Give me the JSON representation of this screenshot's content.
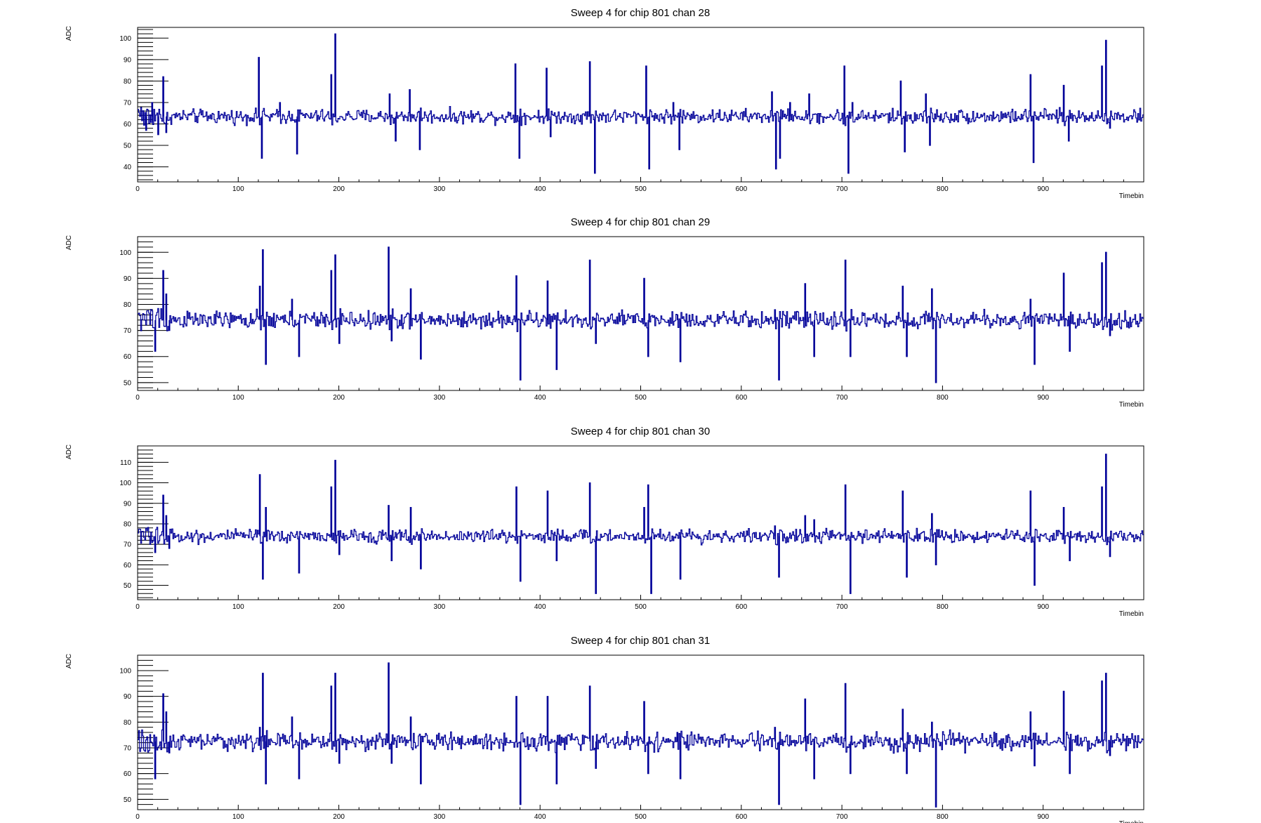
{
  "chart_data": [
    {
      "type": "line",
      "title": "Sweep 4 for chip 801 chan 28",
      "xlabel": "Timebin",
      "ylabel": "ADC",
      "xlim": [
        0,
        1000
      ],
      "ylim": [
        33,
        105
      ],
      "xticks": [
        0,
        100,
        200,
        300,
        400,
        500,
        600,
        700,
        800,
        900
      ],
      "yticks": [
        40,
        50,
        60,
        70,
        80,
        90,
        100
      ],
      "baseline": 63.5,
      "color": "#000099",
      "spikes": [
        {
          "x": 8,
          "y": 57
        },
        {
          "x": 14,
          "y": 70
        },
        {
          "x": 20,
          "y": 55
        },
        {
          "x": 25,
          "y": 82
        },
        {
          "x": 28,
          "y": 56
        },
        {
          "x": 120,
          "y": 91
        },
        {
          "x": 123,
          "y": 44
        },
        {
          "x": 141,
          "y": 70
        },
        {
          "x": 158,
          "y": 46
        },
        {
          "x": 192,
          "y": 83
        },
        {
          "x": 196,
          "y": 102
        },
        {
          "x": 250,
          "y": 74
        },
        {
          "x": 256,
          "y": 52
        },
        {
          "x": 270,
          "y": 76
        },
        {
          "x": 280,
          "y": 48
        },
        {
          "x": 375,
          "y": 88
        },
        {
          "x": 379,
          "y": 44
        },
        {
          "x": 406,
          "y": 86
        },
        {
          "x": 410,
          "y": 54
        },
        {
          "x": 449,
          "y": 89
        },
        {
          "x": 454,
          "y": 37
        },
        {
          "x": 505,
          "y": 87
        },
        {
          "x": 508,
          "y": 39
        },
        {
          "x": 532,
          "y": 70
        },
        {
          "x": 538,
          "y": 48
        },
        {
          "x": 630,
          "y": 75
        },
        {
          "x": 634,
          "y": 39
        },
        {
          "x": 638,
          "y": 44
        },
        {
          "x": 648,
          "y": 70
        },
        {
          "x": 667,
          "y": 74
        },
        {
          "x": 702,
          "y": 87
        },
        {
          "x": 706,
          "y": 37
        },
        {
          "x": 710,
          "y": 70
        },
        {
          "x": 758,
          "y": 80
        },
        {
          "x": 762,
          "y": 47
        },
        {
          "x": 783,
          "y": 74
        },
        {
          "x": 787,
          "y": 50
        },
        {
          "x": 887,
          "y": 83
        },
        {
          "x": 890,
          "y": 42
        },
        {
          "x": 920,
          "y": 78
        },
        {
          "x": 925,
          "y": 52
        },
        {
          "x": 958,
          "y": 87
        },
        {
          "x": 962,
          "y": 99
        },
        {
          "x": 966,
          "y": 58
        }
      ]
    },
    {
      "type": "line",
      "title": "Sweep 4 for chip 801 chan 29",
      "xlabel": "Timebin",
      "ylabel": "ADC",
      "xlim": [
        0,
        1000
      ],
      "ylim": [
        47,
        106
      ],
      "xticks": [
        0,
        100,
        200,
        300,
        400,
        500,
        600,
        700,
        800,
        900
      ],
      "yticks": [
        50,
        60,
        70,
        80,
        90,
        100
      ],
      "baseline": 74,
      "color": "#000099",
      "spikes": [
        {
          "x": 17,
          "y": 62
        },
        {
          "x": 25,
          "y": 93
        },
        {
          "x": 28,
          "y": 84
        },
        {
          "x": 31,
          "y": 70
        },
        {
          "x": 121,
          "y": 87
        },
        {
          "x": 124,
          "y": 101
        },
        {
          "x": 127,
          "y": 57
        },
        {
          "x": 153,
          "y": 82
        },
        {
          "x": 160,
          "y": 60
        },
        {
          "x": 192,
          "y": 93
        },
        {
          "x": 196,
          "y": 99
        },
        {
          "x": 200,
          "y": 65
        },
        {
          "x": 249,
          "y": 102
        },
        {
          "x": 252,
          "y": 66
        },
        {
          "x": 271,
          "y": 86
        },
        {
          "x": 281,
          "y": 59
        },
        {
          "x": 376,
          "y": 91
        },
        {
          "x": 380,
          "y": 51
        },
        {
          "x": 407,
          "y": 89
        },
        {
          "x": 416,
          "y": 55
        },
        {
          "x": 449,
          "y": 97
        },
        {
          "x": 455,
          "y": 65
        },
        {
          "x": 503,
          "y": 90
        },
        {
          "x": 507,
          "y": 60
        },
        {
          "x": 536,
          "y": 76
        },
        {
          "x": 539,
          "y": 58
        },
        {
          "x": 633,
          "y": 78
        },
        {
          "x": 637,
          "y": 51
        },
        {
          "x": 663,
          "y": 88
        },
        {
          "x": 672,
          "y": 60
        },
        {
          "x": 703,
          "y": 97
        },
        {
          "x": 708,
          "y": 60
        },
        {
          "x": 760,
          "y": 87
        },
        {
          "x": 764,
          "y": 60
        },
        {
          "x": 789,
          "y": 86
        },
        {
          "x": 793,
          "y": 50
        },
        {
          "x": 887,
          "y": 82
        },
        {
          "x": 891,
          "y": 57
        },
        {
          "x": 920,
          "y": 92
        },
        {
          "x": 926,
          "y": 62
        },
        {
          "x": 958,
          "y": 96
        },
        {
          "x": 962,
          "y": 100
        },
        {
          "x": 966,
          "y": 68
        }
      ]
    },
    {
      "type": "line",
      "title": "Sweep 4 for chip 801 chan 30",
      "xlabel": "Timebin",
      "ylabel": "ADC",
      "xlim": [
        0,
        1000
      ],
      "ylim": [
        43,
        118
      ],
      "xticks": [
        0,
        100,
        200,
        300,
        400,
        500,
        600,
        700,
        800,
        900
      ],
      "yticks": [
        50,
        60,
        70,
        80,
        90,
        100,
        110
      ],
      "baseline": 74,
      "color": "#000099",
      "spikes": [
        {
          "x": 17,
          "y": 66
        },
        {
          "x": 25,
          "y": 94
        },
        {
          "x": 28,
          "y": 84
        },
        {
          "x": 31,
          "y": 68
        },
        {
          "x": 121,
          "y": 104
        },
        {
          "x": 124,
          "y": 53
        },
        {
          "x": 127,
          "y": 88
        },
        {
          "x": 160,
          "y": 56
        },
        {
          "x": 192,
          "y": 98
        },
        {
          "x": 196,
          "y": 111
        },
        {
          "x": 200,
          "y": 65
        },
        {
          "x": 249,
          "y": 89
        },
        {
          "x": 252,
          "y": 62
        },
        {
          "x": 271,
          "y": 88
        },
        {
          "x": 281,
          "y": 58
        },
        {
          "x": 376,
          "y": 98
        },
        {
          "x": 380,
          "y": 52
        },
        {
          "x": 407,
          "y": 96
        },
        {
          "x": 416,
          "y": 62
        },
        {
          "x": 449,
          "y": 100
        },
        {
          "x": 455,
          "y": 46
        },
        {
          "x": 503,
          "y": 88
        },
        {
          "x": 507,
          "y": 99
        },
        {
          "x": 510,
          "y": 46
        },
        {
          "x": 539,
          "y": 53
        },
        {
          "x": 633,
          "y": 79
        },
        {
          "x": 637,
          "y": 54
        },
        {
          "x": 663,
          "y": 84
        },
        {
          "x": 672,
          "y": 82
        },
        {
          "x": 703,
          "y": 99
        },
        {
          "x": 708,
          "y": 46
        },
        {
          "x": 760,
          "y": 96
        },
        {
          "x": 764,
          "y": 54
        },
        {
          "x": 789,
          "y": 85
        },
        {
          "x": 793,
          "y": 60
        },
        {
          "x": 887,
          "y": 96
        },
        {
          "x": 891,
          "y": 50
        },
        {
          "x": 920,
          "y": 88
        },
        {
          "x": 926,
          "y": 62
        },
        {
          "x": 958,
          "y": 98
        },
        {
          "x": 962,
          "y": 114
        },
        {
          "x": 966,
          "y": 64
        }
      ]
    },
    {
      "type": "line",
      "title": "Sweep 4 for chip 801 chan 31",
      "xlabel": "Timebin",
      "ylabel": "ADC",
      "xlim": [
        0,
        1000
      ],
      "ylim": [
        46,
        106
      ],
      "xticks": [
        0,
        100,
        200,
        300,
        400,
        500,
        600,
        700,
        800,
        900
      ],
      "yticks": [
        50,
        60,
        70,
        80,
        90,
        100
      ],
      "baseline": 72.5,
      "color": "#000099",
      "spikes": [
        {
          "x": 17,
          "y": 58
        },
        {
          "x": 25,
          "y": 91
        },
        {
          "x": 28,
          "y": 84
        },
        {
          "x": 31,
          "y": 68
        },
        {
          "x": 121,
          "y": 78
        },
        {
          "x": 124,
          "y": 99
        },
        {
          "x": 127,
          "y": 56
        },
        {
          "x": 153,
          "y": 82
        },
        {
          "x": 160,
          "y": 58
        },
        {
          "x": 192,
          "y": 94
        },
        {
          "x": 196,
          "y": 99
        },
        {
          "x": 200,
          "y": 64
        },
        {
          "x": 249,
          "y": 103
        },
        {
          "x": 252,
          "y": 64
        },
        {
          "x": 271,
          "y": 82
        },
        {
          "x": 281,
          "y": 56
        },
        {
          "x": 376,
          "y": 90
        },
        {
          "x": 380,
          "y": 48
        },
        {
          "x": 407,
          "y": 90
        },
        {
          "x": 416,
          "y": 56
        },
        {
          "x": 449,
          "y": 94
        },
        {
          "x": 455,
          "y": 62
        },
        {
          "x": 503,
          "y": 88
        },
        {
          "x": 507,
          "y": 60
        },
        {
          "x": 536,
          "y": 76
        },
        {
          "x": 539,
          "y": 58
        },
        {
          "x": 633,
          "y": 78
        },
        {
          "x": 637,
          "y": 48
        },
        {
          "x": 663,
          "y": 89
        },
        {
          "x": 672,
          "y": 58
        },
        {
          "x": 703,
          "y": 95
        },
        {
          "x": 708,
          "y": 60
        },
        {
          "x": 760,
          "y": 85
        },
        {
          "x": 764,
          "y": 60
        },
        {
          "x": 789,
          "y": 80
        },
        {
          "x": 793,
          "y": 47
        },
        {
          "x": 887,
          "y": 84
        },
        {
          "x": 891,
          "y": 63
        },
        {
          "x": 920,
          "y": 92
        },
        {
          "x": 926,
          "y": 60
        },
        {
          "x": 958,
          "y": 96
        },
        {
          "x": 962,
          "y": 99
        },
        {
          "x": 966,
          "y": 67
        }
      ]
    }
  ]
}
